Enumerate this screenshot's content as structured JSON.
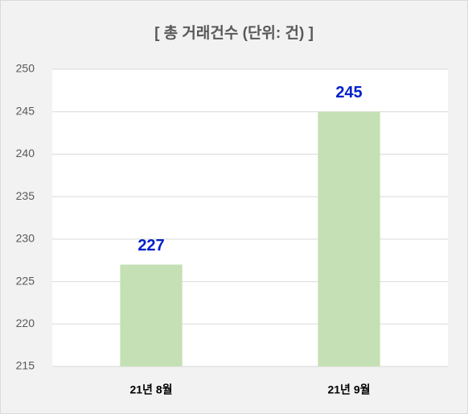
{
  "chart_data": {
    "type": "bar",
    "title": "[ 총 거래건수 (단위: 건) ]",
    "categories": [
      "21년 8월",
      "21년 9월"
    ],
    "values": [
      227,
      245
    ],
    "color": "#c5e0b4",
    "value_label_color": "#0020c8",
    "ylim": [
      215,
      250
    ],
    "yticks": [
      215,
      220,
      225,
      230,
      235,
      240,
      245,
      250
    ],
    "grid": true
  }
}
